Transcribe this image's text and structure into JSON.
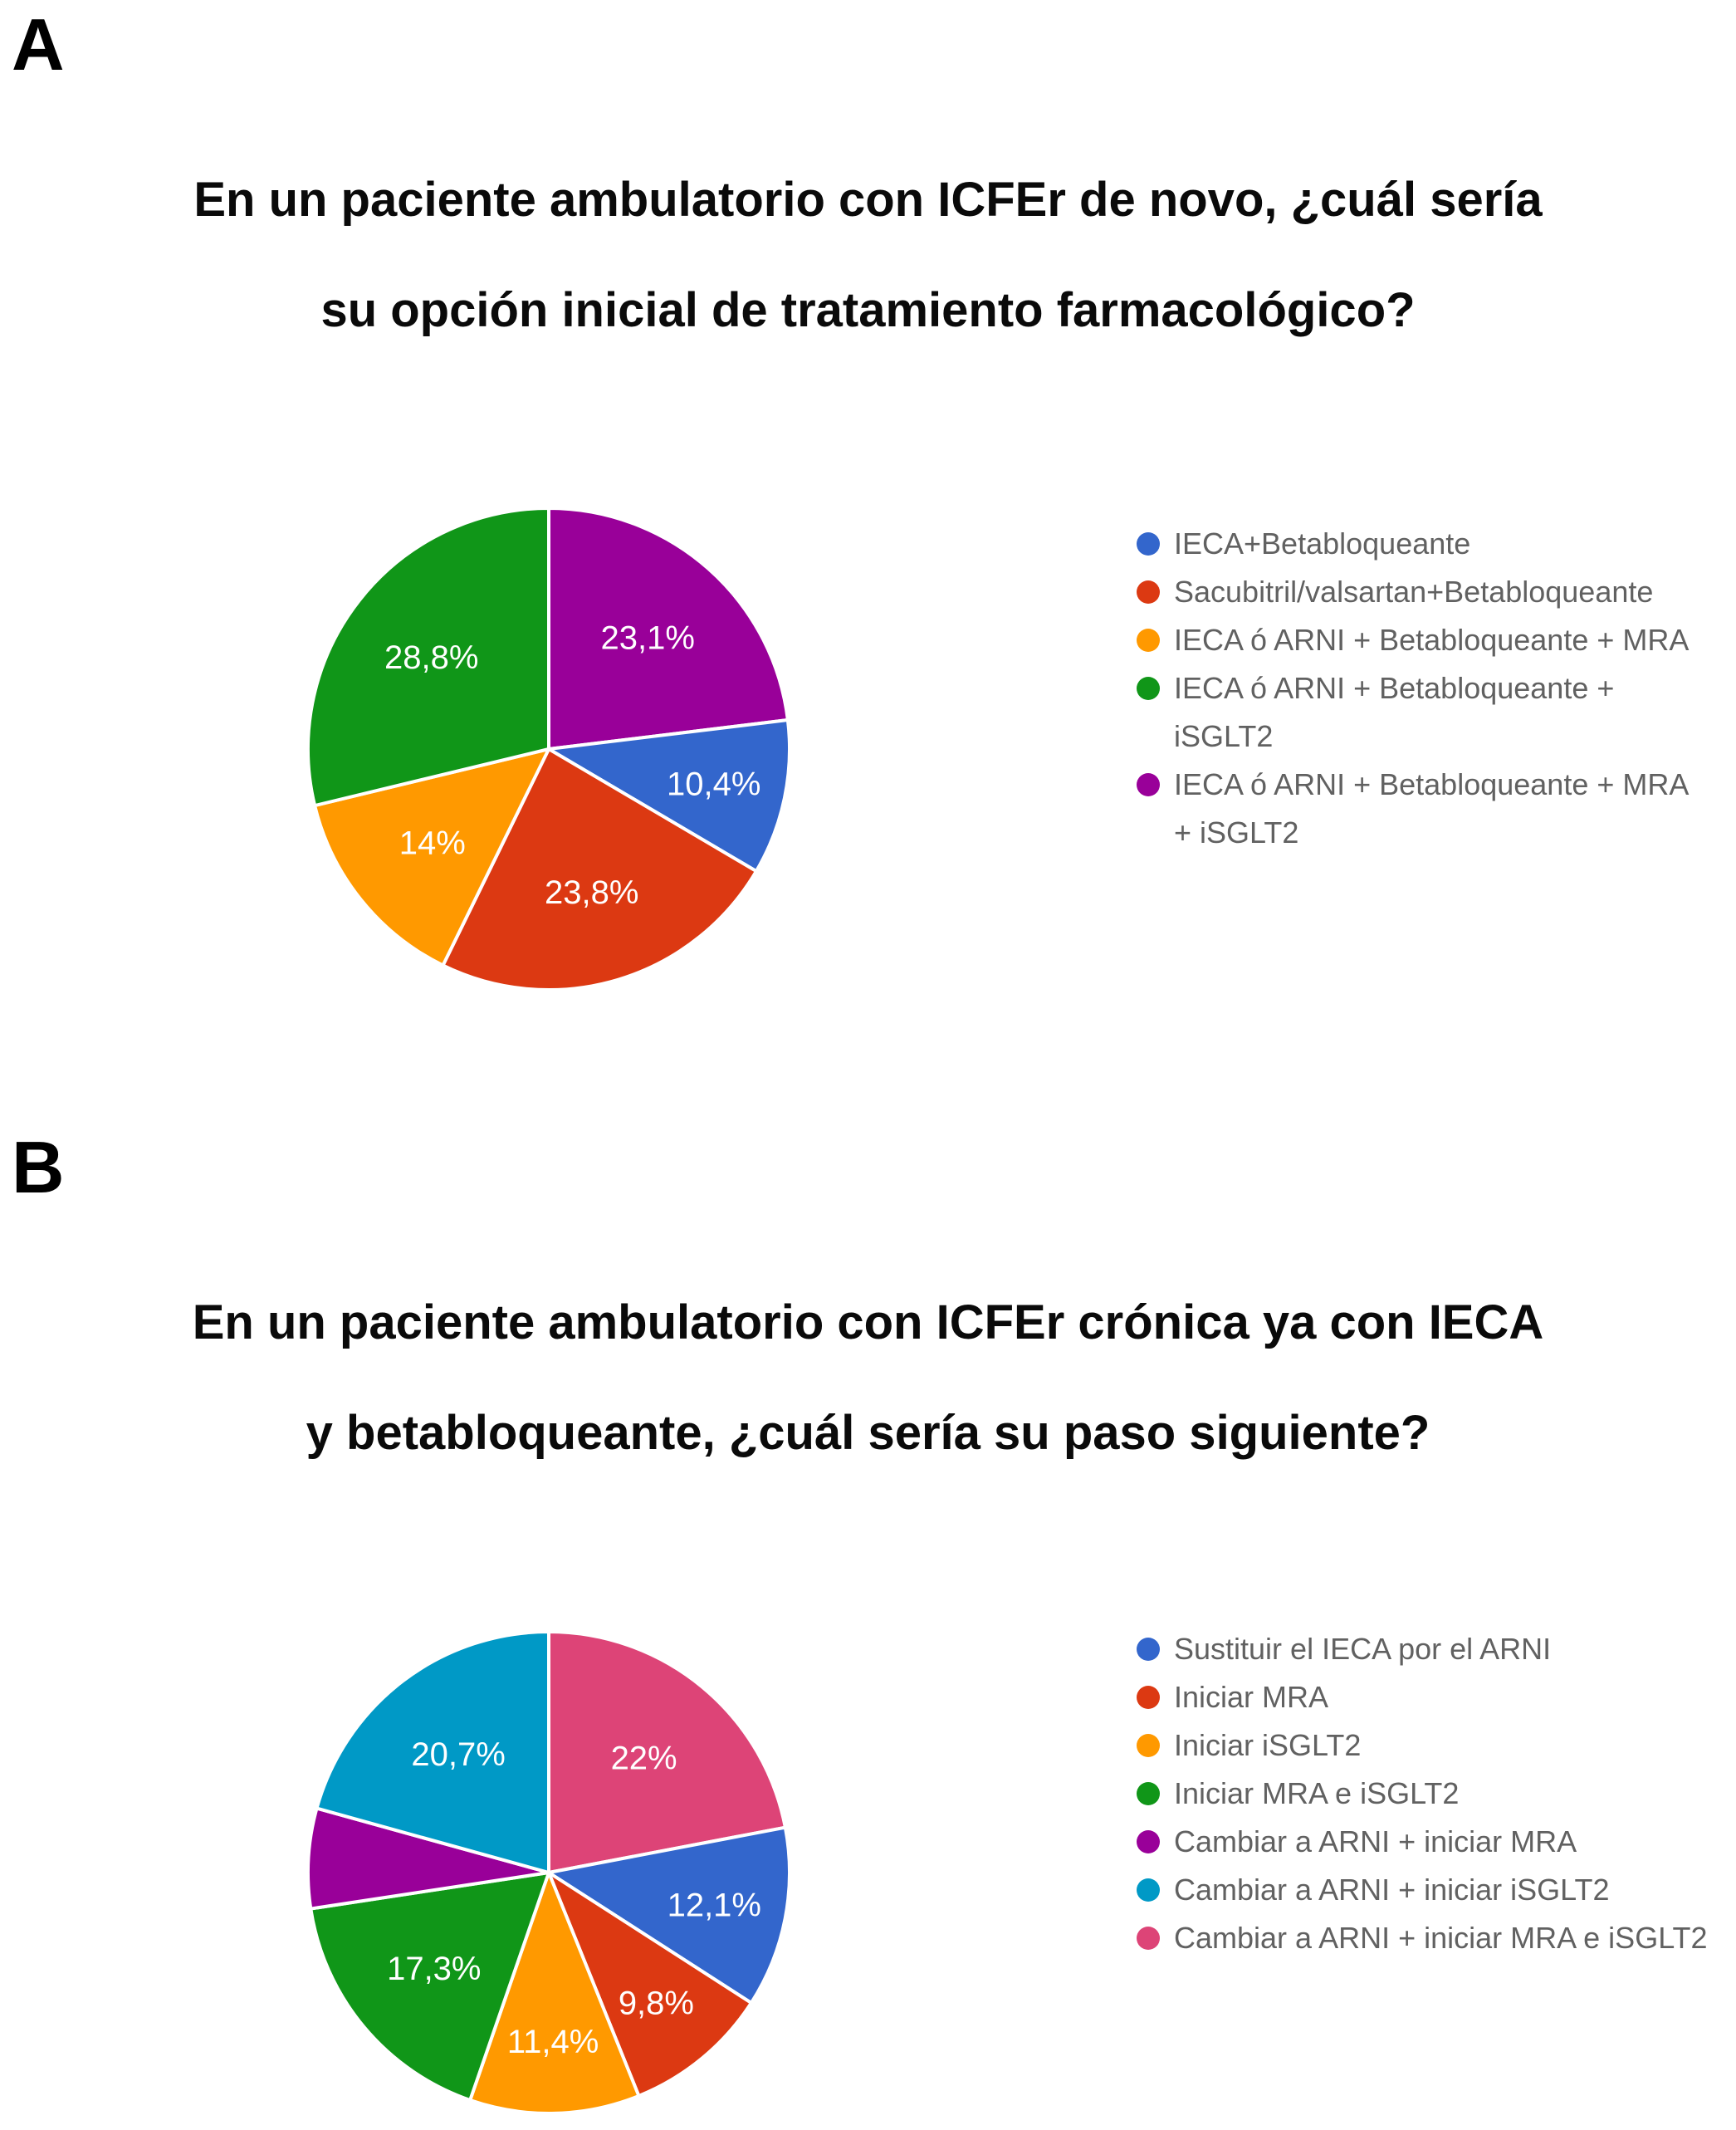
{
  "figure": {
    "legend_text_color": "#616161",
    "panels": [
      {
        "letter": "A",
        "title_lines": [
          "En un paciente ambulatorio con ICFEr de novo, ¿cuál sería",
          "su opción inicial de tratamiento farmacológico?"
        ]
      },
      {
        "letter": "B",
        "title_lines": [
          "En un paciente ambulatorio con ICFEr crónica ya con IECA",
          "y betabloqueante, ¿cuál sería su paso siguiente?"
        ]
      }
    ]
  },
  "chart_data": [
    {
      "type": "pie",
      "panel": "A",
      "title": "En un paciente ambulatorio con ICFEr de novo, ¿cuál sería su opción inicial de tratamiento farmacológico?",
      "legend_position": "right",
      "start_angle": "top",
      "direction": "clockwise",
      "draw_order": [
        4,
        0,
        1,
        2,
        3
      ],
      "slices": [
        {
          "label": "IECA+Betabloqueante",
          "legend_lines": [
            "IECA+Betabloqueante"
          ],
          "value": 10.4,
          "display": "10,4%",
          "color": "#3366CC"
        },
        {
          "label": "Sacubitril/valsartan+Betabloqueante",
          "legend_lines": [
            "Sacubitril/valsartan+Betabloqueante"
          ],
          "value": 23.8,
          "display": "23,8%",
          "color": "#DC3912"
        },
        {
          "label": "IECA ó ARNI + Betabloqueante + MRA",
          "legend_lines": [
            "IECA ó ARNI + Betabloqueante + MRA"
          ],
          "value": 14,
          "display": "14%",
          "color": "#FF9900"
        },
        {
          "label": "IECA ó ARNI + Betabloqueante + iSGLT2",
          "legend_lines": [
            "IECA ó ARNI + Betabloqueante +",
            "iSGLT2"
          ],
          "value": 28.8,
          "display": "28,8%",
          "color": "#109618"
        },
        {
          "label": "IECA ó ARNI + Betabloqueante + MRA + iSGLT2",
          "legend_lines": [
            "IECA ó ARNI + Betabloqueante + MRA",
            "+ iSGLT2"
          ],
          "value": 23.1,
          "display": "23,1%",
          "color": "#990099"
        }
      ]
    },
    {
      "type": "pie",
      "panel": "B",
      "title": "En un paciente ambulatorio con ICFEr crónica ya con IECA y betabloqueante, ¿cuál sería su paso siguiente?",
      "legend_position": "right",
      "start_angle": "top",
      "direction": "clockwise",
      "draw_order": [
        6,
        0,
        1,
        2,
        3,
        4,
        5
      ],
      "slices": [
        {
          "label": "Sustituir el IECA por el ARNI",
          "legend_lines": [
            "Sustituir el IECA por el ARNI"
          ],
          "value": 12.1,
          "display": "12,1%",
          "color": "#3366CC"
        },
        {
          "label": "Iniciar MRA",
          "legend_lines": [
            "Iniciar MRA"
          ],
          "value": 9.8,
          "display": "9,8%",
          "color": "#DC3912"
        },
        {
          "label": "Iniciar iSGLT2",
          "legend_lines": [
            "Iniciar iSGLT2"
          ],
          "value": 11.4,
          "display": "11,4%",
          "color": "#FF9900"
        },
        {
          "label": "Iniciar MRA e iSGLT2",
          "legend_lines": [
            "Iniciar MRA e iSGLT2"
          ],
          "value": 17.3,
          "display": "17,3%",
          "color": "#109618"
        },
        {
          "label": "Cambiar a ARNI + iniciar MRA",
          "legend_lines": [
            "Cambiar a ARNI + iniciar MRA"
          ],
          "value": 6.7,
          "display": "",
          "estimated": true,
          "color": "#990099"
        },
        {
          "label": "Cambiar a ARNI + iniciar iSGLT2",
          "legend_lines": [
            "Cambiar a ARNI + iniciar iSGLT2"
          ],
          "value": 20.7,
          "display": "20,7%",
          "color": "#0099C6"
        },
        {
          "label": "Cambiar a ARNI + iniciar MRA e iSGLT2",
          "legend_lines": [
            "Cambiar a ARNI + iniciar MRA e iSGLT2"
          ],
          "value": 22,
          "display": "22%",
          "color": "#DD4477"
        }
      ]
    }
  ]
}
